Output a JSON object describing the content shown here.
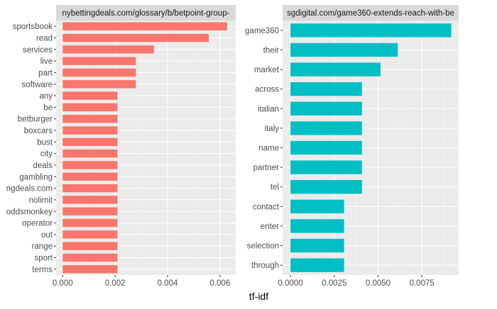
{
  "chart_data": {
    "type": "bar",
    "orientation": "horizontal",
    "xlabel": "tf-idf",
    "facets": [
      {
        "name": "panel-left",
        "strip_label": "nybettingdeals.com/glossary/b/betpoint-group-",
        "color": "#F8766D",
        "xlim": [
          -0.00025,
          0.0066
        ],
        "xticks": [
          0,
          0.002,
          0.004,
          0.006
        ],
        "xtick_labels": [
          "0.000",
          "0.002",
          "0.004",
          "0.006"
        ],
        "categories": [
          "sportsbook",
          "read",
          "services",
          "live",
          "part",
          "software",
          "any",
          "be",
          "betburger",
          "boxcars",
          "bust",
          "city",
          "deals",
          "gambling",
          "ngdeals.com",
          "nolimit",
          "oddsmonkey",
          "operator",
          "out",
          "range",
          "sport",
          "terms"
        ],
        "values": [
          0.00627,
          0.00557,
          0.00348,
          0.00279,
          0.00279,
          0.00279,
          0.00209,
          0.00209,
          0.00209,
          0.00209,
          0.00209,
          0.00209,
          0.00209,
          0.00209,
          0.00209,
          0.00209,
          0.00209,
          0.00209,
          0.00209,
          0.00209,
          0.00209,
          0.00209
        ]
      },
      {
        "name": "panel-right",
        "strip_label": "sgdigital.com/game360-extends-reach-with-be",
        "color": "#00BFC4",
        "xlim": [
          -0.00045,
          0.0096
        ],
        "xticks": [
          0,
          0.0025,
          0.005,
          0.0075
        ],
        "xtick_labels": [
          "0.0000",
          "0.0025",
          "0.0050",
          "0.0075"
        ],
        "categories": [
          "game360",
          "their",
          "market",
          "across",
          "italian",
          "italy",
          "name",
          "partner",
          "tel",
          "contact",
          "enter",
          "selection",
          "through"
        ],
        "values": [
          0.00918,
          0.00612,
          0.00514,
          0.00408,
          0.00408,
          0.00408,
          0.00408,
          0.00408,
          0.00408,
          0.00306,
          0.00306,
          0.00306,
          0.00306
        ]
      }
    ]
  }
}
